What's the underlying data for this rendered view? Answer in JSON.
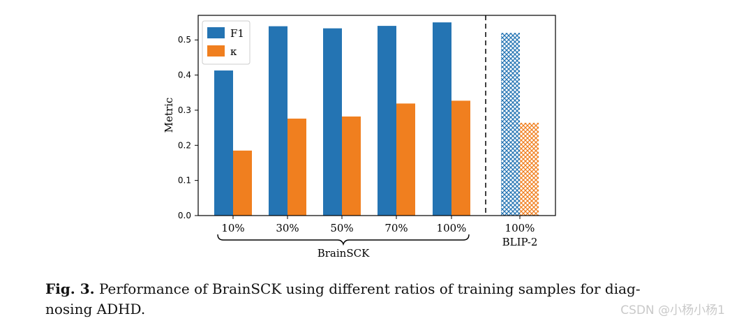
{
  "chart_data": {
    "type": "bar",
    "ylabel": "Metric",
    "ylim": [
      0,
      0.57
    ],
    "yticks": [
      "0.0",
      "0.1",
      "0.2",
      "0.3",
      "0.4",
      "0.5"
    ],
    "legend_position": "top-left",
    "series": [
      {
        "name": "F1",
        "color": "#2474b3"
      },
      {
        "name": "κ",
        "color": "#f07f1f"
      }
    ],
    "groups": [
      {
        "label": "10%",
        "f1": 0.413,
        "kappa": 0.185,
        "hatched": false
      },
      {
        "label": "30%",
        "f1": 0.539,
        "kappa": 0.276,
        "hatched": false
      },
      {
        "label": "50%",
        "f1": 0.533,
        "kappa": 0.282,
        "hatched": false
      },
      {
        "label": "70%",
        "f1": 0.54,
        "kappa": 0.319,
        "hatched": false
      },
      {
        "label": "100%",
        "f1": 0.55,
        "kappa": 0.327,
        "hatched": false
      },
      {
        "label": "100%",
        "f1": 0.52,
        "kappa": 0.264,
        "hatched": true
      }
    ],
    "brace_label": "BrainSCK",
    "baseline_label": "BLIP-2"
  },
  "caption": {
    "prefix": "Fig. 3.",
    "text": "Performance of BrainSCK using different ratios of training samples for diag-",
    "text_line2": "nosing ADHD."
  },
  "watermark": "CSDN @小杨小杨1"
}
